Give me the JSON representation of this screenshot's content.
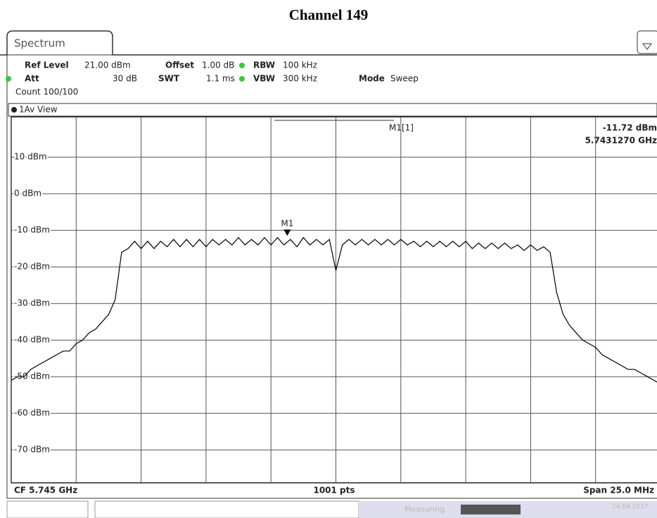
{
  "title": "Channel 149",
  "tab": "Spectrum",
  "settings": [
    {
      "label": "Ref Level",
      "value": "21.00 dBm"
    },
    {
      "label": "Offset",
      "value": "1.00 dB"
    },
    {
      "label": "RBW",
      "value": "100 kHz"
    },
    {
      "label": "Att",
      "value": "30 dB"
    },
    {
      "label": "SWT",
      "value": "1.1 ms"
    },
    {
      "label": "VBW",
      "value": "300 kHz"
    },
    {
      "label": "Mode",
      "value": "Sweep"
    }
  ],
  "count": "Count 100/100",
  "view": "1Av View",
  "footer": {
    "left": "CF 5.745 GHz",
    "center": "1001 pts",
    "right": "Span 25.0 MHz"
  },
  "status": {
    "state": "Measuring",
    "date": "24.04.2017"
  },
  "chart_data": {
    "type": "line",
    "xlim": [
      5.7325,
      5.7575
    ],
    "xticks": [
      5.7325,
      5.735,
      5.7375,
      5.74,
      5.7425,
      5.745,
      5.7475,
      5.75,
      5.7525,
      5.755,
      5.7575
    ],
    "ylim": [
      -79,
      21
    ],
    "yticks": [
      {
        "value": 10,
        "label": "10 dBm"
      },
      {
        "value": 0,
        "label": "0 dBm"
      },
      {
        "value": -10,
        "label": "-10 dBm"
      },
      {
        "value": -20,
        "label": "-20 dBm"
      },
      {
        "value": -30,
        "label": "-30 dBm"
      },
      {
        "value": -40,
        "label": "-40 dBm"
      },
      {
        "value": -50,
        "label": "-50 dBm"
      },
      {
        "value": -60,
        "label": "-60 dBm"
      },
      {
        "value": -70,
        "label": "-70 dBm"
      }
    ],
    "grid": true,
    "x": [
      5.7325,
      5.73275,
      5.733,
      5.73325,
      5.7335,
      5.73375,
      5.734,
      5.73425,
      5.7345,
      5.73475,
      5.735,
      5.73525,
      5.7355,
      5.73575,
      5.736,
      5.73625,
      5.7365,
      5.73675,
      5.737,
      5.73725,
      5.7375,
      5.73775,
      5.738,
      5.73825,
      5.7385,
      5.73875,
      5.739,
      5.73925,
      5.7395,
      5.73975,
      5.74,
      5.74025,
      5.7405,
      5.74075,
      5.741,
      5.74125,
      5.7415,
      5.74175,
      5.742,
      5.74225,
      5.7425,
      5.74275,
      5.743,
      5.74325,
      5.7435,
      5.74375,
      5.744,
      5.74425,
      5.7445,
      5.74475,
      5.745,
      5.74525,
      5.7455,
      5.74575,
      5.746,
      5.74625,
      5.7465,
      5.74675,
      5.747,
      5.74725,
      5.7475,
      5.74775,
      5.748,
      5.74825,
      5.7485,
      5.74875,
      5.749,
      5.74925,
      5.7495,
      5.74975,
      5.75,
      5.75025,
      5.7505,
      5.75075,
      5.751,
      5.75125,
      5.7515,
      5.75175,
      5.752,
      5.75225,
      5.7525,
      5.75275,
      5.753,
      5.75325,
      5.7535,
      5.75375,
      5.754,
      5.75425,
      5.7545,
      5.75475,
      5.755,
      5.75525,
      5.7555,
      5.75575,
      5.756,
      5.75625,
      5.7565,
      5.75675,
      5.757,
      5.75725,
      5.7575
    ],
    "series": [
      {
        "color": "#000000",
        "values": [
          -51,
          -50,
          -50,
          -48,
          -47,
          -46,
          -45,
          -44,
          -43,
          -43,
          -41,
          -40,
          -38,
          -37,
          -35,
          -33,
          -29,
          -16,
          -15,
          -13,
          -15,
          -13,
          -15,
          -13,
          -14.5,
          -12.5,
          -14.5,
          -12.5,
          -14.5,
          -12.5,
          -14.5,
          -12.5,
          -14,
          -12.5,
          -14,
          -12,
          -14,
          -12.5,
          -14,
          -12,
          -14,
          -12,
          -14,
          -12.5,
          -14.5,
          -12,
          -14,
          -12.5,
          -14,
          -12.5,
          -21,
          -14,
          -12.5,
          -14,
          -12.5,
          -14,
          -12.5,
          -14,
          -12.5,
          -14,
          -12.5,
          -14,
          -13,
          -14.5,
          -13,
          -14.5,
          -13,
          -14.5,
          -13,
          -14.5,
          -13,
          -15,
          -13.5,
          -15,
          -13.5,
          -15,
          -13.5,
          -15,
          -14,
          -15.5,
          -14,
          -15.5,
          -14.5,
          -16,
          -27,
          -33,
          -36,
          -38,
          -40,
          -41,
          -42,
          -44,
          -45,
          -46,
          -47,
          -48,
          -48,
          -49,
          -50,
          -51,
          -52
        ]
      }
    ],
    "marker": {
      "label": "M1",
      "readout_name": "M1[1]",
      "x": 5.743127,
      "y": -11.72,
      "x_label": "5.7431270 GHz",
      "y_label": "-11.72 dBm"
    }
  }
}
